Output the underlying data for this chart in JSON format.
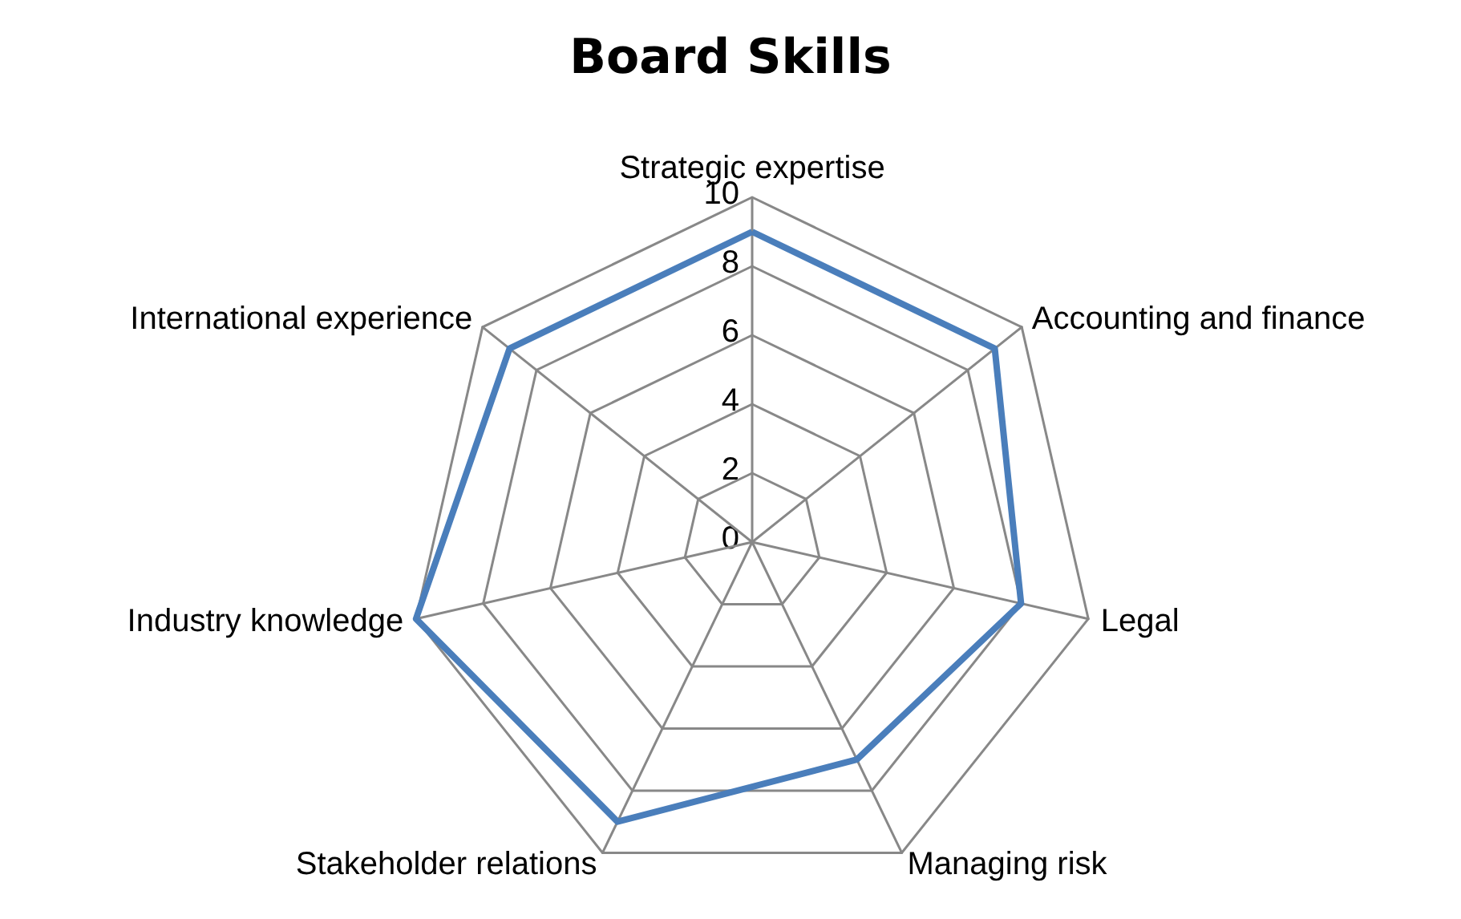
{
  "chart_data": {
    "type": "radar",
    "title": "Board Skills",
    "categories": [
      "Strategic expertise",
      "Accounting and finance",
      "Legal",
      "Managing risk",
      "Stakeholder relations",
      "Industry knowledge",
      "International experience"
    ],
    "series": [
      {
        "color": "#4a7ebb",
        "values": [
          9,
          9,
          8,
          7,
          9,
          10,
          9
        ]
      }
    ],
    "ylim": [
      0,
      10
    ],
    "yticks": [
      0,
      2,
      4,
      6,
      8,
      10
    ],
    "grid": true,
    "marker": "none"
  }
}
